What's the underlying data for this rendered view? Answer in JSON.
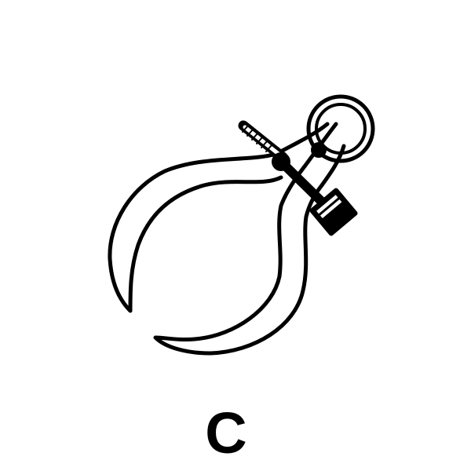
{
  "figure": {
    "label": "C",
    "subject_icon": "outside-caliper-with-spring-and-adjusting-nut-icon",
    "colors": {
      "ink": "#000000",
      "paper": "#ffffff"
    }
  }
}
